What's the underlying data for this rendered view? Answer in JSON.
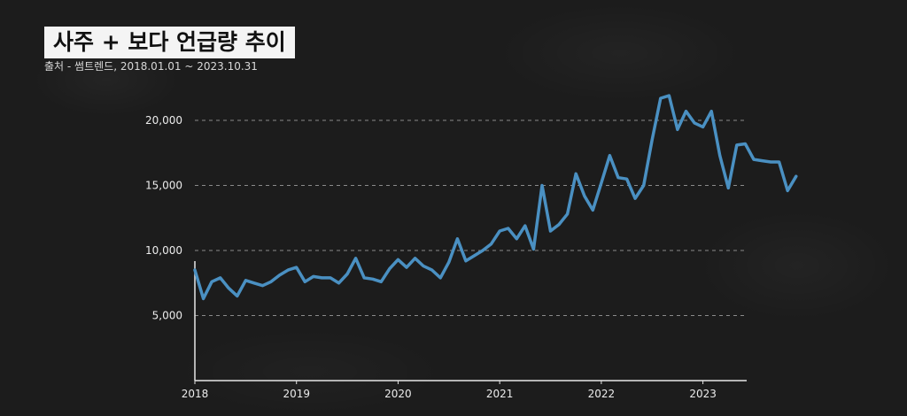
{
  "title": "사주 + 보다 언급량 추이",
  "subtitle": "출처 - 썸트렌드, 2018.01.01 ~ 2023.10.31",
  "colors": {
    "line": "#4a90c2",
    "background": "#1c1c1c",
    "grid": "#8a8a8a",
    "axis": "#e6e6e6"
  },
  "chart_data": {
    "type": "line",
    "title": "사주 + 보다 언급량 추이",
    "xlabel": "",
    "ylabel": "",
    "grid": true,
    "ylim": [
      0,
      22500
    ],
    "xlim": [
      "2018-01",
      "2023-10"
    ],
    "y_ticks": [
      5000,
      10000,
      15000,
      20000
    ],
    "y_tick_labels": [
      "5,000",
      "10,000",
      "15,000",
      "20,000"
    ],
    "x_tick_labels": [
      "2018",
      "2019",
      "2020",
      "2021",
      "2022",
      "2023"
    ],
    "series": [
      {
        "values": [
          8500,
          6300,
          7600,
          7900,
          7100,
          6500,
          7700,
          7500,
          7300,
          7600,
          8100,
          8500,
          8700,
          7600,
          8000,
          7900,
          7900,
          7500,
          8200,
          9400,
          7900,
          7800,
          7600,
          8600,
          9300,
          8700,
          9400,
          8800,
          8500,
          7900,
          9100,
          10900,
          9200,
          9600,
          10000,
          10500,
          11500,
          11700,
          10900,
          11900,
          10100,
          15000,
          11500,
          12000,
          12800,
          15900,
          14200,
          13100,
          15200,
          17300,
          15600,
          15500,
          14000,
          15000,
          18500,
          21700,
          21900,
          19300,
          20700,
          19800,
          19500,
          20700,
          17300,
          14800,
          18100,
          18200,
          17000,
          16900,
          16800,
          16800,
          14600,
          15700
        ]
      }
    ]
  }
}
